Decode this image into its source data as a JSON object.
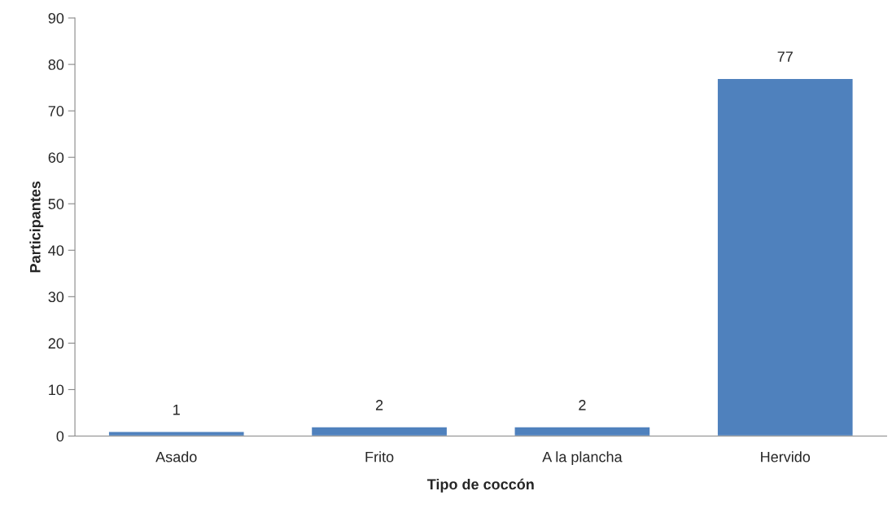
{
  "chart_data": {
    "type": "bar",
    "xlabel": "Tipo de coccón",
    "ylabel": "Participantes",
    "categories": [
      "Asado",
      "Frito",
      "A la plancha",
      "Hervido"
    ],
    "values": [
      1,
      2,
      2,
      77
    ],
    "color": "#4f81bd",
    "ylim": [
      0,
      90
    ],
    "yticks": [
      0,
      10,
      20,
      30,
      40,
      50,
      60,
      70,
      80,
      90
    ],
    "data_labels": true,
    "grid": false,
    "legend": false
  }
}
